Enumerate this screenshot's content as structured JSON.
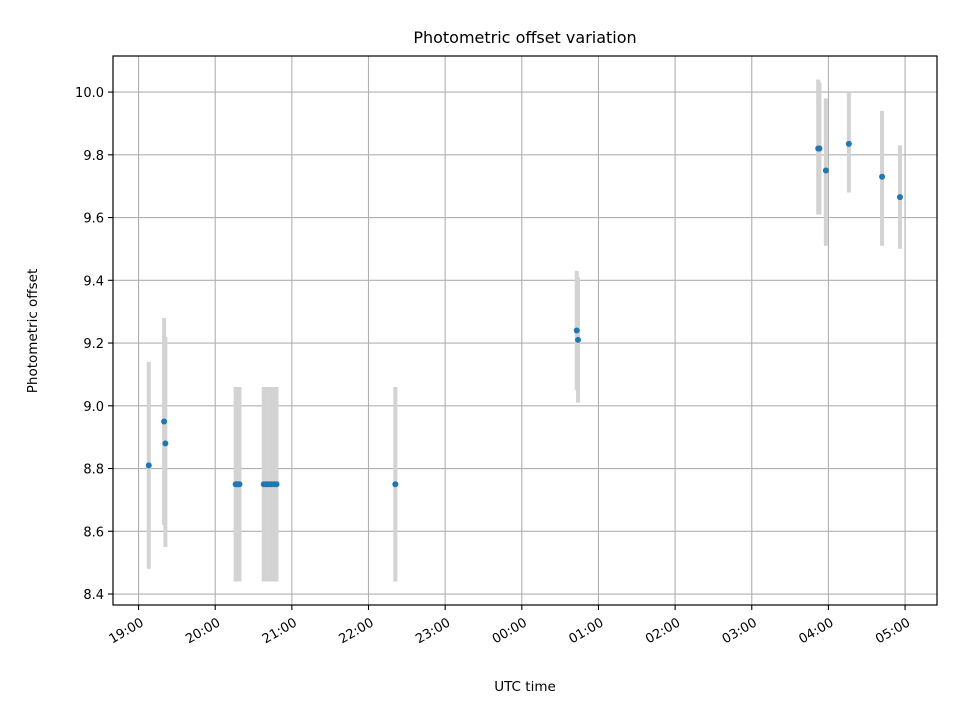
{
  "chart_data": {
    "type": "scatter",
    "title": "Photometric offset variation",
    "xlabel": "UTC time",
    "ylabel": "Photometric offset",
    "x_axis_kind": "time",
    "x_start_date_time": "19:00",
    "xlim": [
      "18:40",
      "05:25"
    ],
    "ylim": [
      8.365,
      10.115
    ],
    "x_tick_labels": [
      "19:00",
      "20:00",
      "21:00",
      "22:00",
      "23:00",
      "00:00",
      "01:00",
      "02:00",
      "03:00",
      "04:00",
      "05:00"
    ],
    "y_ticks": [
      8.4,
      8.6,
      8.8,
      9.0,
      9.2,
      9.4,
      9.6,
      9.8,
      10.0
    ],
    "y_tick_labels": [
      "8.4",
      "8.6",
      "8.8",
      "9.0",
      "9.2",
      "9.4",
      "9.6",
      "9.8",
      "10.0"
    ],
    "grid": true,
    "legend": "none",
    "colors": {
      "points": "#1f77b4",
      "error_bars": "#d3d3d3",
      "grid": "#b0b0b0"
    },
    "series": [
      {
        "points": [
          {
            "x": "19:08",
            "y": 8.81,
            "y_low": 8.48,
            "y_high": 9.14
          },
          {
            "x": "19:20",
            "y": 8.95,
            "y_low": 8.62,
            "y_high": 9.28
          },
          {
            "x": "19:21",
            "y": 8.88,
            "y_low": 8.55,
            "y_high": 9.22
          },
          {
            "x": "20:16",
            "y": 8.75,
            "y_low": 8.44,
            "y_high": 9.06
          },
          {
            "x": "20:17",
            "y": 8.75,
            "y_low": 8.44,
            "y_high": 9.06
          },
          {
            "x": "20:18",
            "y": 8.75,
            "y_low": 8.44,
            "y_high": 9.06
          },
          {
            "x": "20:19",
            "y": 8.75,
            "y_low": 8.44,
            "y_high": 9.06
          },
          {
            "x": "20:38",
            "y": 8.75,
            "y_low": 8.44,
            "y_high": 9.06
          },
          {
            "x": "20:40",
            "y": 8.75,
            "y_low": 8.44,
            "y_high": 9.06
          },
          {
            "x": "20:42",
            "y": 8.75,
            "y_low": 8.44,
            "y_high": 9.06
          },
          {
            "x": "20:44",
            "y": 8.75,
            "y_low": 8.44,
            "y_high": 9.06
          },
          {
            "x": "20:46",
            "y": 8.75,
            "y_low": 8.44,
            "y_high": 9.06
          },
          {
            "x": "20:48",
            "y": 8.75,
            "y_low": 8.44,
            "y_high": 9.06
          },
          {
            "x": "22:21",
            "y": 8.75,
            "y_low": 8.44,
            "y_high": 9.06
          },
          {
            "x": "00:43",
            "y": 9.24,
            "y_low": 9.05,
            "y_high": 9.43
          },
          {
            "x": "00:44",
            "y": 9.21,
            "y_low": 9.01,
            "y_high": 9.41
          },
          {
            "x": "03:52",
            "y": 9.82,
            "y_low": 9.61,
            "y_high": 10.04
          },
          {
            "x": "03:53",
            "y": 9.82,
            "y_low": 9.61,
            "y_high": 10.03
          },
          {
            "x": "03:58",
            "y": 9.75,
            "y_low": 9.51,
            "y_high": 9.98
          },
          {
            "x": "04:16",
            "y": 9.835,
            "y_low": 9.68,
            "y_high": 10.0
          },
          {
            "x": "04:42",
            "y": 9.73,
            "y_low": 9.51,
            "y_high": 9.94
          },
          {
            "x": "04:56",
            "y": 9.665,
            "y_low": 9.5,
            "y_high": 9.83
          }
        ]
      }
    ]
  }
}
